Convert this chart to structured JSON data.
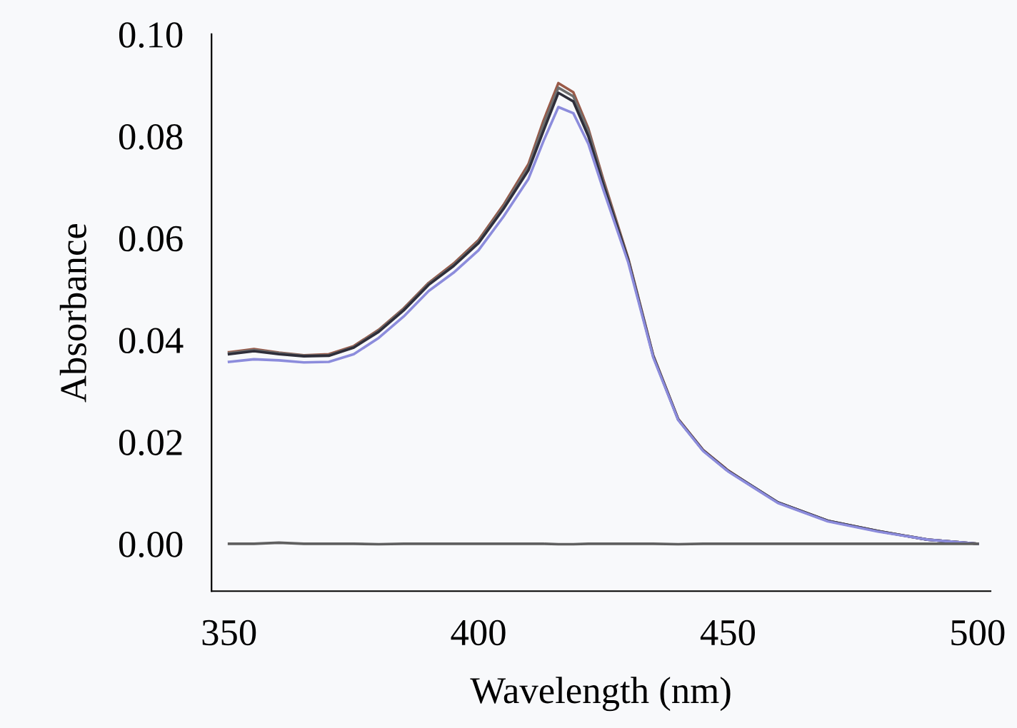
{
  "chart_data": {
    "type": "line",
    "xlabel": "Wavelength (nm)",
    "ylabel": "Absorbance",
    "x": [
      350,
      355,
      360,
      365,
      370,
      375,
      380,
      385,
      390,
      395,
      400,
      405,
      410,
      413,
      416,
      419,
      422,
      425,
      430,
      435,
      440,
      445,
      450,
      455,
      460,
      470,
      480,
      490,
      500
    ],
    "series": [
      {
        "color": "#9a5a48",
        "values": [
          0.0376,
          0.0382,
          0.0375,
          0.037,
          0.0372,
          0.0388,
          0.042,
          0.0462,
          0.0512,
          0.055,
          0.0596,
          0.0665,
          0.0745,
          0.083,
          0.0904,
          0.0886,
          0.0815,
          0.0715,
          0.056,
          0.037,
          0.0245,
          0.0184,
          0.0144,
          0.0112,
          0.0081,
          0.0045,
          0.0025,
          0.0008,
          0.0
        ]
      },
      {
        "color": "#6e6e6e",
        "values": [
          0.0374,
          0.038,
          0.0374,
          0.0369,
          0.037,
          0.0386,
          0.0418,
          0.046,
          0.051,
          0.0547,
          0.0593,
          0.0661,
          0.0739,
          0.0822,
          0.0895,
          0.0878,
          0.081,
          0.071,
          0.0558,
          0.0369,
          0.0244,
          0.0183,
          0.0143,
          0.0112,
          0.0081,
          0.0045,
          0.0025,
          0.0008,
          0.0
        ]
      },
      {
        "color": "#2e2e3a",
        "values": [
          0.0372,
          0.0378,
          0.0372,
          0.0368,
          0.0369,
          0.0385,
          0.0416,
          0.0458,
          0.0508,
          0.0545,
          0.059,
          0.0657,
          0.0733,
          0.081,
          0.0885,
          0.0868,
          0.08,
          0.0705,
          0.0556,
          0.0368,
          0.0244,
          0.0183,
          0.0143,
          0.0112,
          0.0081,
          0.0045,
          0.0025,
          0.0008,
          0.0
        ]
      },
      {
        "color": "#8c8cdc",
        "values": [
          0.0357,
          0.0362,
          0.036,
          0.0356,
          0.0357,
          0.0372,
          0.0404,
          0.0446,
          0.0496,
          0.0532,
          0.0576,
          0.0642,
          0.0716,
          0.079,
          0.0857,
          0.0845,
          0.0785,
          0.0695,
          0.0552,
          0.0366,
          0.0243,
          0.0182,
          0.0142,
          0.0111,
          0.008,
          0.0044,
          0.0024,
          0.0008,
          0.0
        ]
      },
      {
        "color": "#606060",
        "values": [
          0.0,
          0.0,
          0.0002,
          0.0,
          0.0,
          0.0,
          -0.0001,
          0.0,
          0.0,
          0.0,
          0.0,
          0.0,
          0.0,
          0.0,
          -0.0001,
          -0.0001,
          0.0,
          0.0,
          0.0,
          0.0,
          -0.0001,
          0.0,
          0.0,
          0.0,
          0.0,
          0.0,
          0.0,
          0.0,
          0.0
        ]
      }
    ],
    "xlim": [
      346.5,
      502.6
    ],
    "xticks": [
      350,
      400,
      450,
      500
    ],
    "ylim": [
      -0.0093,
      0.1
    ],
    "yticks": [
      {
        "value": 0,
        "label": "0.00"
      },
      {
        "value": 0.02,
        "label": "0.02"
      },
      {
        "value": 0.04,
        "label": "0.04"
      },
      {
        "value": 0.06,
        "label": "0.06"
      },
      {
        "value": 0.08,
        "label": "0.08"
      },
      {
        "value": 0.1,
        "label": "0.10"
      }
    ],
    "grid": false,
    "marker": "none",
    "line_style": "solid"
  }
}
